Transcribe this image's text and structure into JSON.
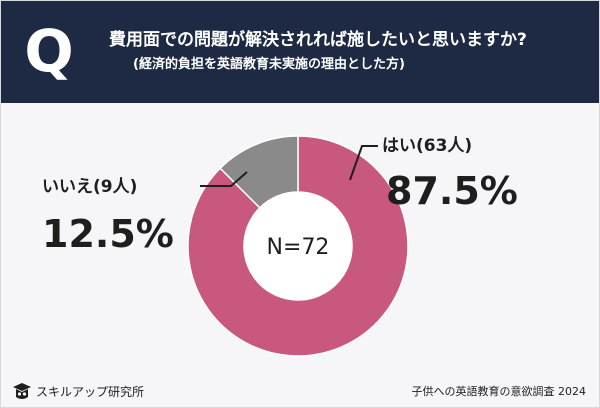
{
  "header": {
    "badge": "Q",
    "title": "費用面での問題が解決されれば施したいと思いますか?",
    "subtitle": "(経済的負担を英語教育未実施の理由とした方)"
  },
  "chart_data": {
    "type": "pie",
    "donut": true,
    "center_label": "N=72",
    "slices": [
      {
        "label": "はい(63人)",
        "count": 63,
        "value": 87.5,
        "value_label": "87.5%",
        "color": "#c9587f"
      },
      {
        "label": "いいえ(9人)",
        "count": 9,
        "value": 12.5,
        "value_label": "12.5%",
        "color": "#8a8a8a"
      }
    ]
  },
  "footer": {
    "brand": "スキルアップ研究所",
    "caption": "子供への英語教育の意欲調査 2024",
    "brand_icon": "graduate-owl-icon"
  }
}
